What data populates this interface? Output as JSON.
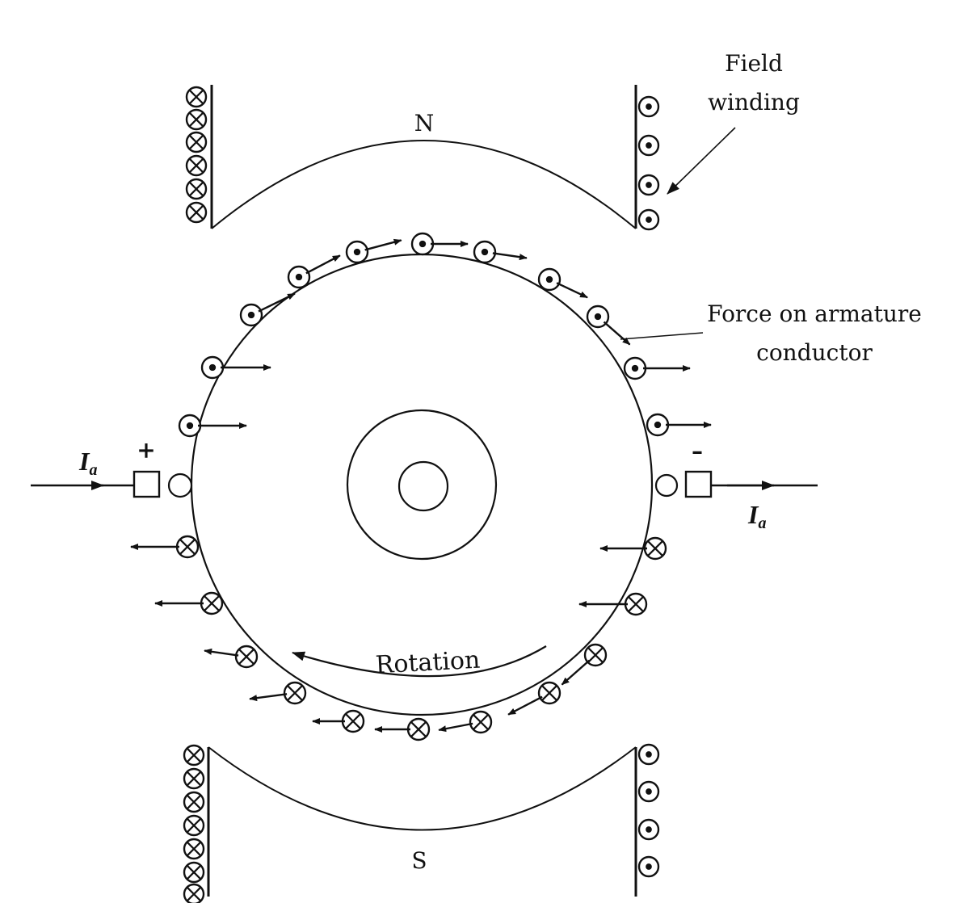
{
  "labels": {
    "north_pole": "N",
    "south_pole": "S",
    "field_winding": [
      "Field",
      "winding"
    ],
    "force_label": [
      "Force on armature",
      "conductor"
    ],
    "rotation": "Rotation",
    "current_symbol": "I",
    "current_subscript": "a",
    "brush_positive": "+",
    "brush_negative": "–"
  },
  "conductor_symbols": {
    "upper_half": "dot (current out of page), force arrow pointing right",
    "lower_half": "cross (current into page), force arrow pointing left"
  }
}
